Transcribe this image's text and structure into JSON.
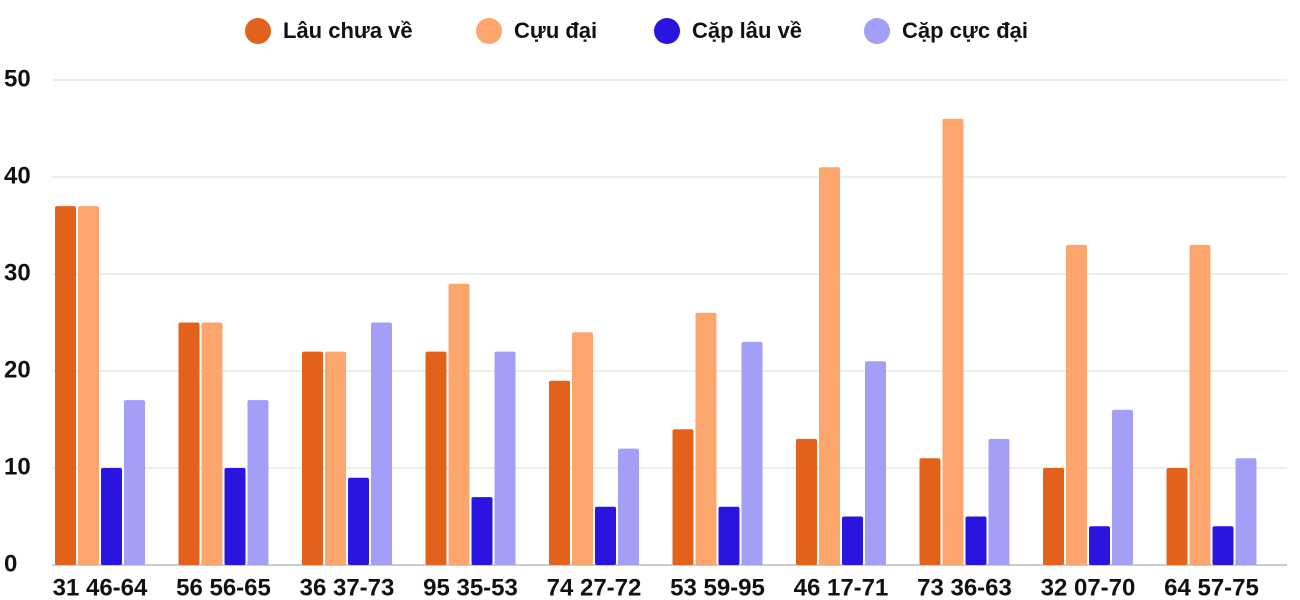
{
  "chart_data": {
    "type": "bar",
    "categories": [
      "31 46-64",
      "56 56-65",
      "36 37-73",
      "95 35-53",
      "74 27-72",
      "53 59-95",
      "46 17-71",
      "73 36-63",
      "32 07-70",
      "64 57-75"
    ],
    "series": [
      {
        "name": "Lâu chưa về",
        "color": "#e2621b",
        "values": [
          37,
          25,
          22,
          22,
          19,
          14,
          13,
          11,
          10,
          10
        ]
      },
      {
        "name": "Cựu đại",
        "color": "#fca56c",
        "values": [
          37,
          25,
          22,
          29,
          24,
          26,
          41,
          46,
          33,
          33
        ]
      },
      {
        "name": "Cặp lâu về",
        "color": "#2a14e0",
        "values": [
          10,
          10,
          9,
          7,
          6,
          6,
          5,
          5,
          4,
          4
        ]
      },
      {
        "name": "Cặp cực đại",
        "color": "#a39ff7",
        "values": [
          17,
          17,
          25,
          22,
          12,
          23,
          21,
          13,
          16,
          11
        ]
      }
    ],
    "ylim": [
      0,
      50
    ],
    "yticks": [
      0,
      10,
      20,
      30,
      40,
      50
    ],
    "grid": true,
    "legend": "top"
  }
}
